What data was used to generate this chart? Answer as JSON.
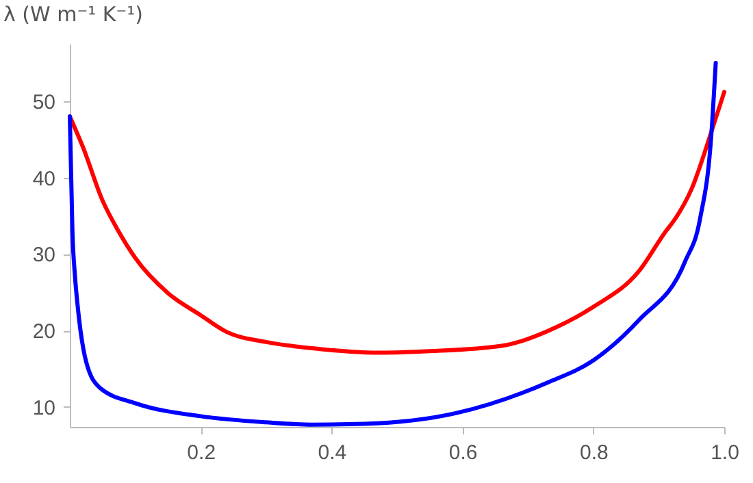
{
  "chart_data": {
    "type": "line",
    "ylabel": "λ (W m⁻¹ K⁻¹)",
    "xlim": [
      0,
      1.0
    ],
    "ylim": [
      7.4,
      57.5
    ],
    "xticks": [
      0.2,
      0.4,
      0.6,
      0.8,
      {
        "value": 1.0,
        "label": "1.0"
      }
    ],
    "yticks": [
      10,
      20,
      30,
      40,
      50
    ],
    "grid": false,
    "legend": false,
    "marker": "none",
    "line_style": "solid",
    "series": [
      {
        "color": "#ff0000",
        "x": [
          0,
          0.02,
          0.05,
          0.075,
          0.1,
          0.15,
          0.2,
          0.24,
          0.3,
          0.38,
          0.475,
          0.55,
          0.66,
          0.745,
          0.8,
          0.87,
          0.91,
          0.925,
          0.95,
          0.98,
          1.0
        ],
        "values": [
          48,
          44,
          37,
          32.9,
          29.5,
          24.9,
          22,
          19.8,
          18.5,
          17.6,
          17.1,
          17.3,
          18.0,
          20.5,
          23.1,
          27.8,
          32.9,
          34.6,
          38.5,
          45.9,
          51.2
        ]
      },
      {
        "color": "#0000ff",
        "x": [
          0,
          0.004,
          0.008,
          0.012,
          0.025,
          0.046,
          0.1,
          0.2,
          0.3,
          0.37,
          0.45,
          0.59,
          0.73,
          0.8,
          0.87,
          0.94,
          0.963,
          0.98,
          0.987
        ],
        "values": [
          48,
          32.9,
          27,
          23.2,
          15.9,
          12.5,
          10.5,
          8.8,
          8.0,
          7.7,
          7.8,
          9.2,
          13.2,
          16.1,
          21.4,
          29,
          34.6,
          45.3,
          55
        ]
      }
    ]
  }
}
